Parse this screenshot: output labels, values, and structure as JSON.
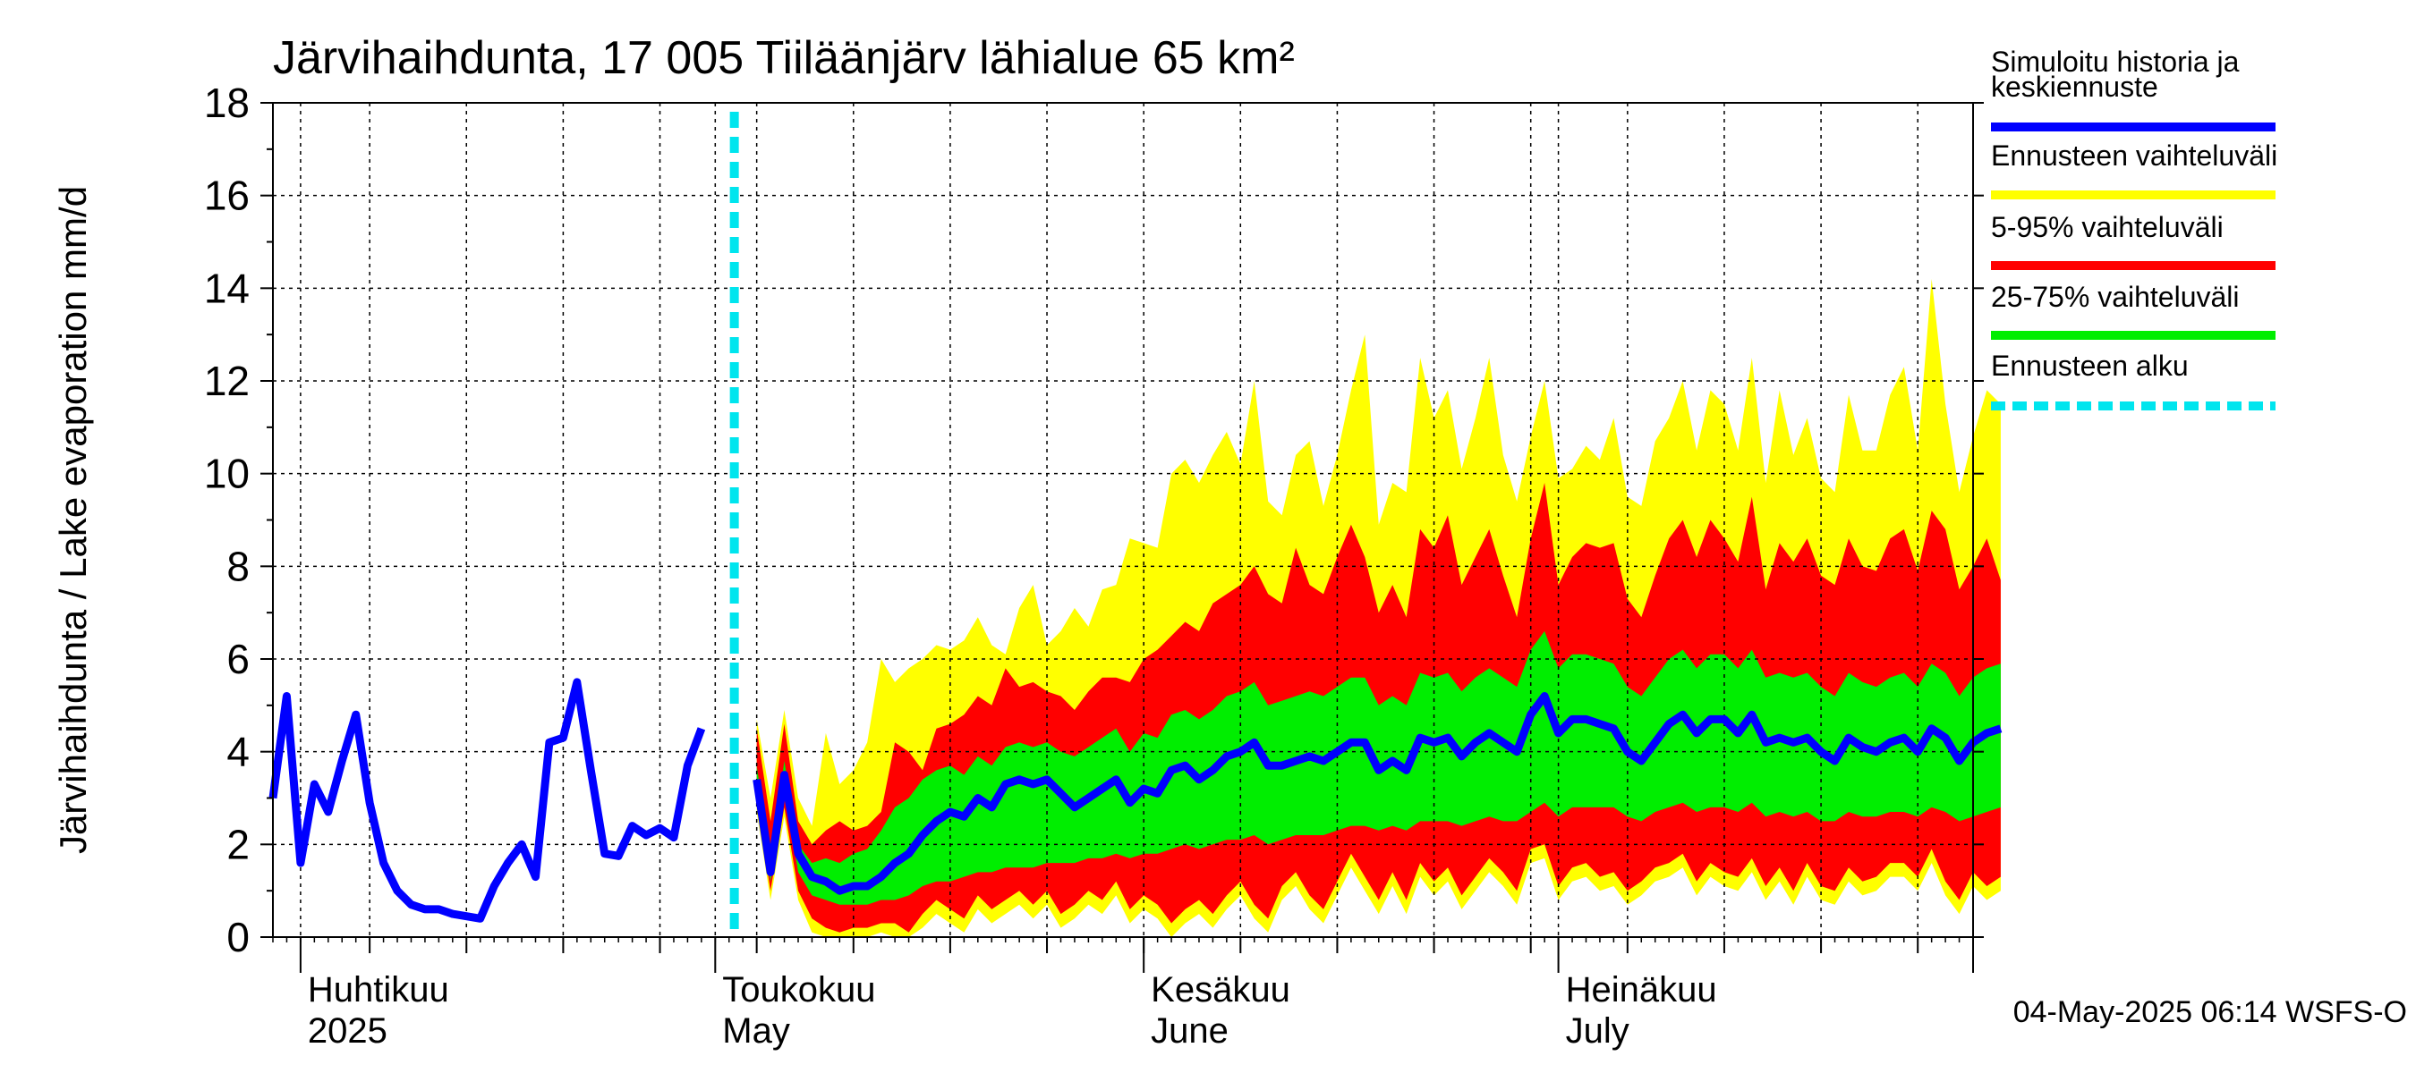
{
  "chart_data": {
    "type": "area",
    "title": "Järvihaihdunta, 17 005 Tiiläänjärv lähialue 65 km²",
    "ylabel": "Järvihaihdunta / Lake evaporation   mm/d",
    "ylim": [
      0,
      18
    ],
    "yticks": [
      0,
      2,
      4,
      6,
      8,
      10,
      12,
      14,
      16,
      18
    ],
    "xlim": [
      "2025-03-30",
      "2025-07-31"
    ],
    "forecast_start": "2025-05-04",
    "month_labels": [
      {
        "date": "2025-04-01",
        "fi": "Huhtikuu",
        "en": "2025"
      },
      {
        "date": "2025-05-01",
        "fi": "Toukokuu",
        "en": "May"
      },
      {
        "date": "2025-06-01",
        "fi": "Kesäkuu",
        "en": "June"
      },
      {
        "date": "2025-07-01",
        "fi": "Heinäkuu",
        "en": "July"
      }
    ],
    "legend": [
      {
        "label": "Simuloitu historia ja keskiennuste",
        "lines": [
          "Simuloitu historia ja",
          "keskiennuste"
        ],
        "color": "#0000ff",
        "style": "solid"
      },
      {
        "label": "Ennusteen vaihteluväli",
        "lines": [
          "Ennusteen vaihteluväli"
        ],
        "color": "#ffff00",
        "style": "solid"
      },
      {
        "label": "5-95% vaihteluväli",
        "lines": [
          "5-95% vaihteluväli"
        ],
        "color": "#ff0000",
        "style": "solid"
      },
      {
        "label": "25-75% vaihteluväli",
        "lines": [
          "25-75% vaihteluväli"
        ],
        "color": "#00ee00",
        "style": "solid"
      },
      {
        "label": "Ennusteen alku",
        "lines": [
          "Ennusteen alku"
        ],
        "color": "#00e5ee",
        "style": "dashed"
      }
    ],
    "timestamp": "04-May-2025 06:14 WSFS-O",
    "series": {
      "history": {
        "start_date": "2025-03-30",
        "values": [
          3.0,
          5.2,
          1.6,
          3.3,
          2.7,
          3.8,
          4.8,
          2.9,
          1.6,
          1.0,
          0.7,
          0.6,
          0.6,
          0.5,
          0.45,
          0.4,
          1.1,
          1.6,
          2.0,
          1.3,
          4.2,
          4.3,
          5.5,
          3.6,
          1.8,
          1.75,
          2.4,
          2.2,
          2.35,
          2.15,
          3.7,
          4.5
        ]
      },
      "forecast": {
        "start_date": "2025-05-04",
        "median": [
          3.4,
          1.4,
          3.5,
          1.8,
          1.3,
          1.2,
          1.0,
          1.1,
          1.1,
          1.3,
          1.6,
          1.8,
          2.2,
          2.5,
          2.7,
          2.6,
          3.0,
          2.8,
          3.3,
          3.4,
          3.3,
          3.4,
          3.1,
          2.8,
          3.0,
          3.2,
          3.4,
          2.9,
          3.2,
          3.1,
          3.6,
          3.7,
          3.4,
          3.6,
          3.9,
          4.0,
          4.2,
          3.7,
          3.7,
          3.8,
          3.9,
          3.8,
          4.0,
          4.2,
          4.2,
          3.6,
          3.8,
          3.6,
          4.3,
          4.2,
          4.3,
          3.9,
          4.2,
          4.4,
          4.2,
          4.0,
          4.8,
          5.2,
          4.4,
          4.7,
          4.7,
          4.6,
          4.5,
          4.0,
          3.8,
          4.2,
          4.6,
          4.8,
          4.4,
          4.7,
          4.7,
          4.4,
          4.8,
          4.2,
          4.3,
          4.2,
          4.3,
          4.0,
          3.8,
          4.3,
          4.1,
          4.0,
          4.2,
          4.3,
          4.0,
          4.5,
          4.3,
          3.8,
          4.2,
          4.4,
          4.5
        ],
        "p25": [
          3.1,
          1.2,
          3.2,
          1.4,
          0.9,
          0.8,
          0.7,
          0.7,
          0.7,
          0.8,
          0.8,
          0.9,
          1.1,
          1.2,
          1.2,
          1.3,
          1.4,
          1.4,
          1.5,
          1.5,
          1.5,
          1.6,
          1.6,
          1.6,
          1.7,
          1.7,
          1.8,
          1.7,
          1.8,
          1.8,
          1.9,
          2.0,
          1.9,
          2.0,
          2.1,
          2.1,
          2.2,
          2.0,
          2.1,
          2.2,
          2.2,
          2.2,
          2.3,
          2.4,
          2.4,
          2.3,
          2.4,
          2.3,
          2.5,
          2.5,
          2.5,
          2.4,
          2.5,
          2.6,
          2.5,
          2.5,
          2.7,
          2.9,
          2.6,
          2.8,
          2.8,
          2.8,
          2.8,
          2.6,
          2.5,
          2.7,
          2.8,
          2.9,
          2.7,
          2.8,
          2.8,
          2.7,
          2.9,
          2.6,
          2.7,
          2.6,
          2.7,
          2.5,
          2.5,
          2.7,
          2.6,
          2.6,
          2.7,
          2.7,
          2.6,
          2.8,
          2.7,
          2.5,
          2.6,
          2.7,
          2.8
        ],
        "p75": [
          3.7,
          1.6,
          3.8,
          2.0,
          1.6,
          1.7,
          1.6,
          1.8,
          1.9,
          2.3,
          2.8,
          3.0,
          3.4,
          3.6,
          3.7,
          3.5,
          3.9,
          3.7,
          4.1,
          4.2,
          4.1,
          4.2,
          4.0,
          3.9,
          4.1,
          4.3,
          4.5,
          4.0,
          4.4,
          4.3,
          4.8,
          4.9,
          4.7,
          4.9,
          5.2,
          5.3,
          5.5,
          5.0,
          5.1,
          5.2,
          5.3,
          5.2,
          5.4,
          5.6,
          5.6,
          5.0,
          5.2,
          5.0,
          5.7,
          5.6,
          5.7,
          5.3,
          5.6,
          5.8,
          5.6,
          5.4,
          6.2,
          6.6,
          5.8,
          6.1,
          6.1,
          6.0,
          5.9,
          5.4,
          5.2,
          5.6,
          6.0,
          6.2,
          5.8,
          6.1,
          6.1,
          5.8,
          6.2,
          5.6,
          5.7,
          5.6,
          5.7,
          5.4,
          5.2,
          5.7,
          5.5,
          5.4,
          5.6,
          5.7,
          5.4,
          5.9,
          5.7,
          5.2,
          5.6,
          5.8,
          5.9
        ],
        "p05": [
          2.9,
          1.0,
          2.8,
          1.0,
          0.4,
          0.2,
          0.1,
          0.2,
          0.2,
          0.3,
          0.3,
          0.1,
          0.5,
          0.8,
          0.6,
          0.4,
          0.9,
          0.6,
          0.8,
          1.0,
          0.7,
          1.0,
          0.5,
          0.7,
          1.0,
          0.8,
          1.2,
          0.6,
          0.9,
          0.7,
          0.3,
          0.6,
          0.8,
          0.5,
          0.9,
          1.2,
          0.7,
          0.4,
          1.1,
          1.4,
          0.9,
          0.6,
          1.2,
          1.8,
          1.3,
          0.8,
          1.4,
          0.8,
          1.6,
          1.2,
          1.5,
          0.9,
          1.3,
          1.7,
          1.4,
          1.0,
          1.9,
          2.0,
          1.1,
          1.5,
          1.6,
          1.3,
          1.4,
          1.0,
          1.2,
          1.5,
          1.6,
          1.8,
          1.2,
          1.6,
          1.4,
          1.3,
          1.7,
          1.1,
          1.5,
          1.0,
          1.6,
          1.1,
          1.0,
          1.5,
          1.2,
          1.3,
          1.6,
          1.6,
          1.3,
          1.9,
          1.2,
          0.8,
          1.4,
          1.1,
          1.3
        ],
        "p95": [
          4.5,
          2.5,
          4.6,
          2.5,
          2.0,
          2.3,
          2.5,
          2.3,
          2.4,
          2.7,
          4.2,
          4.0,
          3.6,
          4.5,
          4.6,
          4.8,
          5.2,
          5.0,
          5.8,
          5.4,
          5.5,
          5.3,
          5.2,
          4.9,
          5.3,
          5.6,
          5.6,
          5.5,
          6.0,
          6.2,
          6.5,
          6.8,
          6.6,
          7.2,
          7.4,
          7.6,
          8.0,
          7.4,
          7.2,
          8.4,
          7.6,
          7.4,
          8.2,
          8.9,
          8.2,
          7.0,
          7.6,
          6.9,
          8.8,
          8.4,
          9.1,
          7.6,
          8.2,
          8.8,
          7.8,
          6.9,
          8.6,
          9.8,
          7.6,
          8.2,
          8.5,
          8.4,
          8.5,
          7.3,
          6.9,
          7.8,
          8.6,
          9.0,
          8.2,
          9.0,
          8.6,
          8.1,
          9.5,
          7.5,
          8.5,
          8.1,
          8.6,
          7.8,
          7.6,
          8.6,
          8.0,
          7.9,
          8.6,
          8.8,
          7.9,
          9.2,
          8.8,
          7.5,
          8.0,
          8.6,
          7.7
        ],
        "min": [
          2.7,
          0.8,
          2.6,
          0.8,
          0.1,
          0.0,
          0.0,
          0.0,
          0.0,
          0.1,
          0.0,
          0.0,
          0.2,
          0.5,
          0.3,
          0.1,
          0.6,
          0.3,
          0.5,
          0.7,
          0.4,
          0.7,
          0.2,
          0.4,
          0.7,
          0.5,
          0.9,
          0.3,
          0.6,
          0.4,
          0.0,
          0.3,
          0.5,
          0.2,
          0.6,
          0.9,
          0.4,
          0.1,
          0.8,
          1.1,
          0.6,
          0.3,
          0.9,
          1.5,
          1.0,
          0.5,
          1.1,
          0.5,
          1.3,
          0.9,
          1.2,
          0.6,
          1.0,
          1.4,
          1.1,
          0.7,
          1.6,
          1.7,
          0.8,
          1.2,
          1.3,
          1.0,
          1.1,
          0.7,
          0.9,
          1.2,
          1.3,
          1.5,
          0.9,
          1.3,
          1.1,
          1.0,
          1.4,
          0.8,
          1.2,
          0.7,
          1.3,
          0.8,
          0.7,
          1.2,
          0.9,
          1.0,
          1.3,
          1.3,
          1.0,
          1.6,
          0.9,
          0.5,
          1.1,
          0.8,
          1.0
        ],
        "max": [
          4.7,
          3.0,
          4.9,
          3.0,
          2.4,
          4.4,
          3.3,
          3.6,
          4.2,
          6.0,
          5.5,
          5.8,
          6.0,
          6.3,
          6.2,
          6.4,
          6.9,
          6.3,
          6.1,
          7.1,
          7.6,
          6.3,
          6.6,
          7.1,
          6.7,
          7.5,
          7.6,
          8.6,
          8.5,
          8.4,
          10.0,
          10.3,
          9.8,
          10.4,
          10.9,
          10.2,
          12.0,
          9.4,
          9.1,
          10.4,
          10.7,
          9.3,
          10.4,
          11.8,
          13.0,
          8.9,
          9.8,
          9.6,
          12.5,
          11.2,
          11.8,
          10.1,
          11.2,
          12.5,
          10.4,
          9.4,
          10.8,
          12.0,
          9.9,
          10.1,
          10.6,
          10.3,
          11.2,
          9.5,
          9.3,
          10.7,
          11.2,
          12.0,
          10.5,
          11.8,
          11.5,
          10.5,
          12.5,
          9.8,
          11.8,
          10.4,
          11.2,
          9.9,
          9.6,
          11.7,
          10.5,
          10.5,
          11.7,
          12.3,
          10.5,
          14.2,
          11.5,
          9.6,
          10.8,
          11.8,
          11.5
        ]
      }
    }
  }
}
